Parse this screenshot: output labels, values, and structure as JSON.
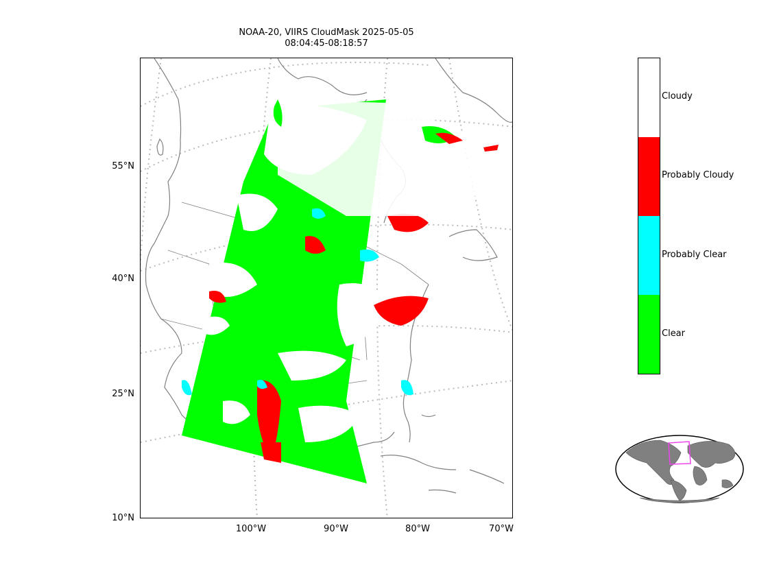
{
  "title": {
    "line1": "NOAA-20, VIIRS CloudMask 2025-05-05",
    "line2": "08:04:45-08:18:57"
  },
  "map": {
    "latitude_labels": [
      "55°N",
      "40°N",
      "25°N",
      "10°N"
    ],
    "longitude_labels": [
      "100°W",
      "90°W",
      "80°W",
      "70°W"
    ],
    "gridline_style": "dotted gray",
    "coastline_color": "#808080"
  },
  "colorbar": {
    "categories": [
      {
        "label": "Cloudy",
        "color": "#ffffff"
      },
      {
        "label": "Probably Cloudy",
        "color": "#ff0000"
      },
      {
        "label": "Probably Clear",
        "color": "#00ffff"
      },
      {
        "label": "Clear",
        "color": "#00ff00"
      }
    ]
  },
  "inset": {
    "name": "globe-locator",
    "land_color": "#808080",
    "box_color": "#ee44ee"
  }
}
